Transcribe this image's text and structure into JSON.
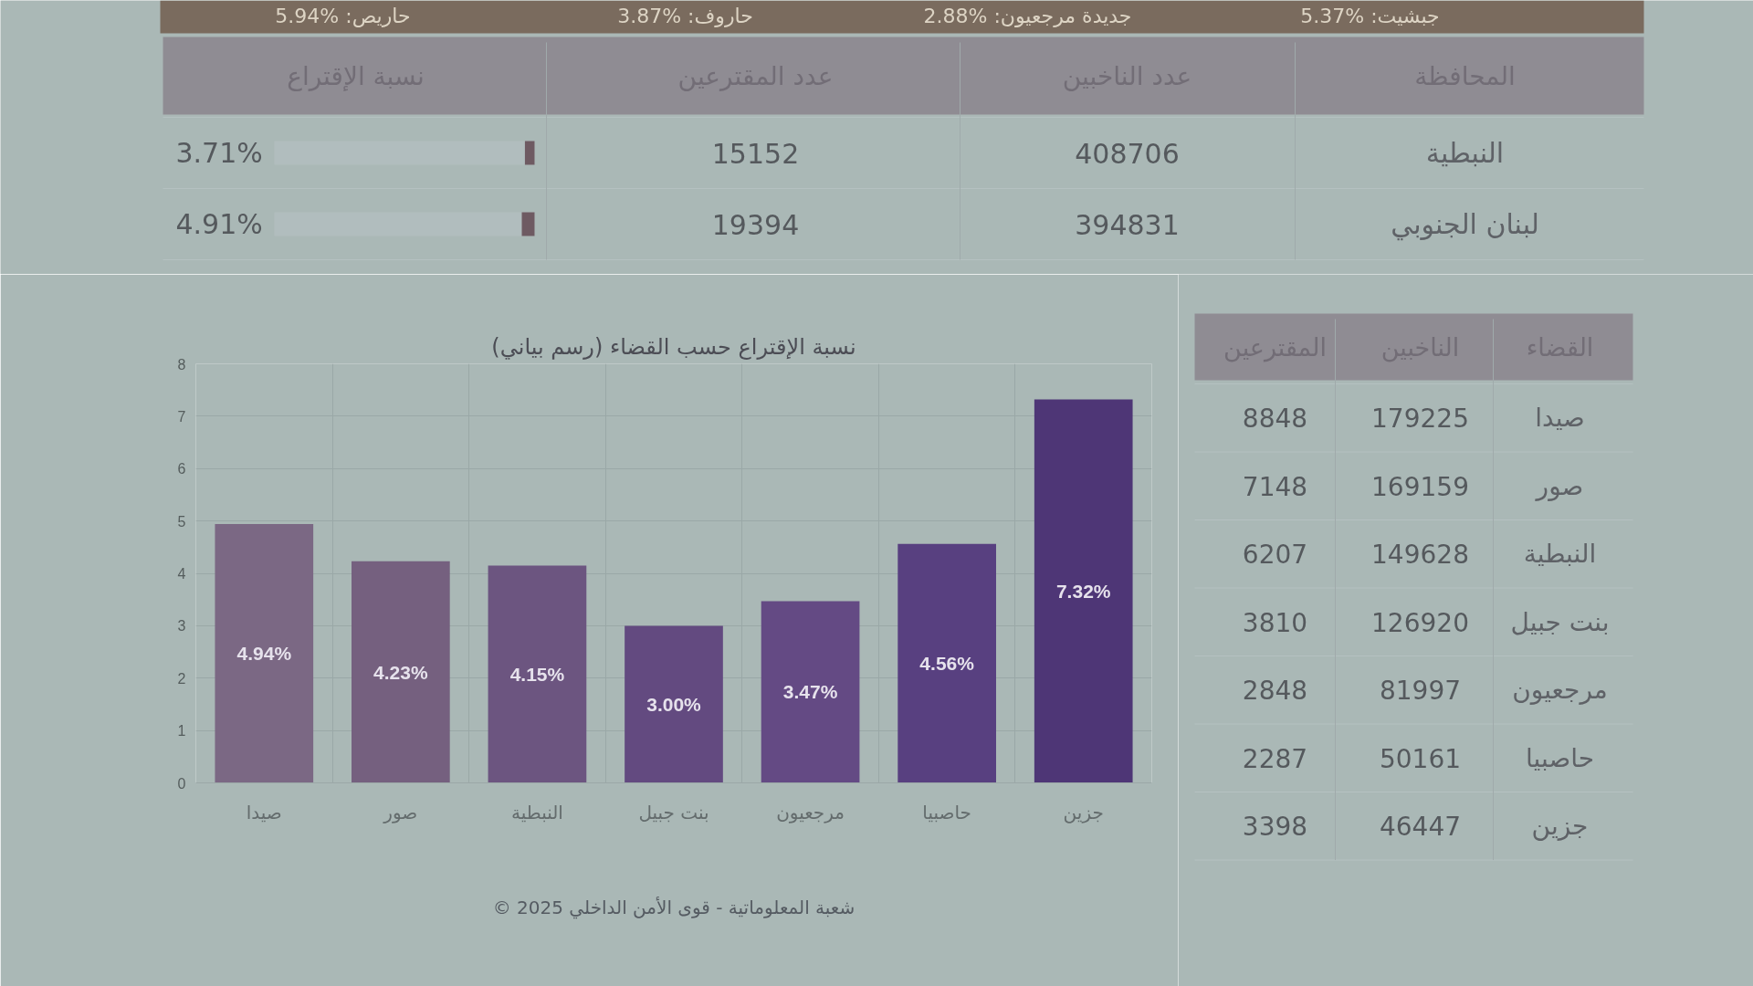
{
  "chart_data": [
    {
      "type": "other",
      "annotations": [
        "جبشيت: %5.37",
        "جديدة مرجعيون: %2.88",
        "حاروف: %3.87",
        "حاريص: %5.94"
      ],
      "xlabel": "المحافظة",
      "categories": [
        "النبطية",
        "لبنان الجنوبي"
      ],
      "data_labels": true,
      "series": [
        {
          "name": "عدد الناخبين",
          "values": [
            408706,
            394831
          ]
        },
        {
          "name": "عدد المقترعين",
          "values": [
            15152,
            19394
          ]
        },
        {
          "name": "نسبة الإقتراع",
          "type": "bar",
          "color": "#6e5a62",
          "values": [
            3.71,
            4.91
          ],
          "value_labels": [
            "3.71%",
            "4.91%"
          ]
        }
      ]
    },
    {
      "type": "bar",
      "title": "نسبة الإقتراع حسب القضاء (رسم بياني)",
      "categories": [
        "صيدا",
        "صور",
        "النبطية",
        "بنت جبيل",
        "مرجعيون",
        "حاصبيا",
        "جزين"
      ],
      "values": [
        4.94,
        4.23,
        4.15,
        3.0,
        3.47,
        4.56,
        7.32
      ],
      "value_labels": [
        "4.94%",
        "4.23%",
        "4.15%",
        "3.00%",
        "3.47%",
        "4.56%",
        "7.32%"
      ],
      "colors": [
        "#7b6884",
        "#75607f",
        "#6c5580",
        "#634a80",
        "#644a84",
        "#584080",
        "#4e3676"
      ],
      "ylim": [
        0,
        8
      ],
      "yticks": [
        0,
        1,
        2,
        3,
        4,
        5,
        6,
        7,
        8
      ],
      "grid": true,
      "annotations": [
        "© شعبة المعلوماتية - قوى الأمن الداخلي 2025"
      ]
    },
    {
      "type": "other",
      "xlabel": "القضاء",
      "categories": [
        "صيدا",
        "صور",
        "النبطية",
        "بنت جبيل",
        "مرجعيون",
        "حاصبيا",
        "جزين"
      ],
      "data_labels": true,
      "series": [
        {
          "name": "الناخبين",
          "values": [
            179225,
            169159,
            149628,
            126920,
            81997,
            50161,
            46447
          ]
        },
        {
          "name": "المقترعين",
          "values": [
            8848,
            7148,
            6207,
            3810,
            2848,
            2287,
            3398
          ]
        }
      ]
    }
  ]
}
